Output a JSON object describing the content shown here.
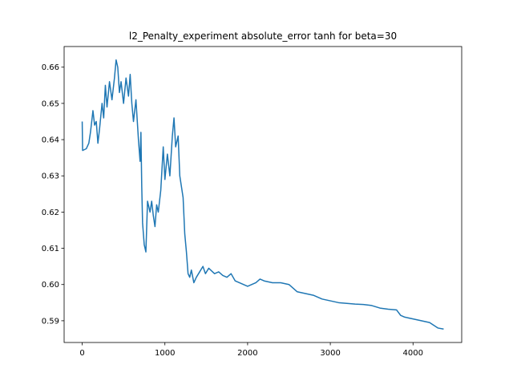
{
  "chart_data": {
    "type": "line",
    "title": "l2_Penalty_experiment absolute_error tanh for beta=30",
    "x": [
      0,
      5,
      50,
      80,
      100,
      130,
      150,
      170,
      190,
      210,
      240,
      260,
      280,
      300,
      330,
      360,
      390,
      410,
      430,
      450,
      470,
      500,
      530,
      560,
      580,
      600,
      620,
      650,
      680,
      700,
      710,
      720,
      730,
      750,
      770,
      790,
      820,
      840,
      860,
      880,
      900,
      920,
      950,
      980,
      1000,
      1030,
      1060,
      1090,
      1110,
      1130,
      1160,
      1180,
      1200,
      1220,
      1240,
      1260,
      1280,
      1300,
      1320,
      1350,
      1380,
      1420,
      1460,
      1490,
      1530,
      1600,
      1650,
      1700,
      1750,
      1800,
      1850,
      1900,
      1950,
      2000,
      2050,
      2100,
      2150,
      2200,
      2300,
      2400,
      2500,
      2600,
      2700,
      2800,
      2900,
      3000,
      3100,
      3200,
      3300,
      3400,
      3500,
      3600,
      3700,
      3800,
      3850,
      3900,
      4000,
      4100,
      4200,
      4300,
      4370
    ],
    "series": [
      {
        "color": "#1f77b4",
        "values": [
          0.645,
          0.637,
          0.6375,
          0.639,
          0.642,
          0.648,
          0.644,
          0.645,
          0.639,
          0.643,
          0.65,
          0.646,
          0.655,
          0.649,
          0.656,
          0.651,
          0.657,
          0.662,
          0.66,
          0.653,
          0.656,
          0.65,
          0.657,
          0.652,
          0.658,
          0.65,
          0.645,
          0.651,
          0.64,
          0.634,
          0.642,
          0.627,
          0.617,
          0.611,
          0.609,
          0.623,
          0.62,
          0.623,
          0.619,
          0.616,
          0.622,
          0.62,
          0.626,
          0.638,
          0.629,
          0.636,
          0.63,
          0.641,
          0.646,
          0.638,
          0.641,
          0.63,
          0.627,
          0.624,
          0.614,
          0.609,
          0.603,
          0.602,
          0.604,
          0.6005,
          0.602,
          0.6035,
          0.605,
          0.603,
          0.6045,
          0.603,
          0.6035,
          0.6025,
          0.602,
          0.603,
          0.601,
          0.6005,
          0.6,
          0.5995,
          0.6,
          0.6005,
          0.6015,
          0.601,
          0.6005,
          0.6005,
          0.6,
          0.598,
          0.5975,
          0.597,
          0.596,
          0.5955,
          0.595,
          0.5948,
          0.5946,
          0.5945,
          0.5942,
          0.5935,
          0.5932,
          0.593,
          0.5915,
          0.591,
          0.5905,
          0.59,
          0.5895,
          0.588,
          0.5877
        ]
      }
    ],
    "xlim": [
      -218.5,
      4588.5
    ],
    "xticks": [
      0,
      1000,
      2000,
      3000,
      4000
    ],
    "ylim": [
      0.584,
      0.6657
    ],
    "yticks": [
      0.59,
      {
        "value": 0.6,
        "label": "0.60"
      },
      0.61,
      0.62,
      0.63,
      0.64,
      0.65,
      0.66
    ]
  }
}
